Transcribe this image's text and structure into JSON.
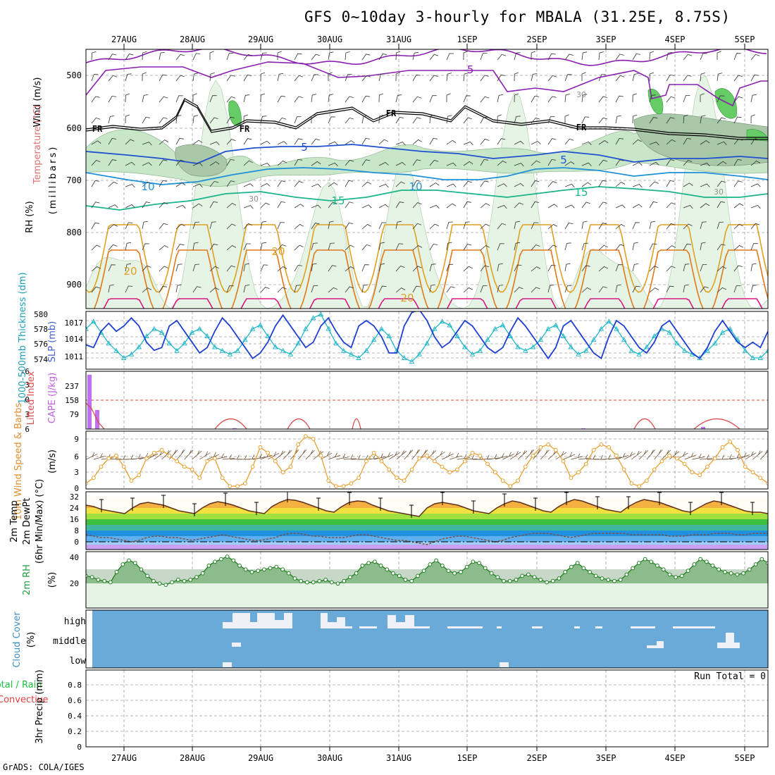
{
  "title": "GFS 0~10day 3-hourly for MBALA (31.25E, 8.75S)",
  "credit": "GrADS: COLA/IGES",
  "dates": [
    "27AUG",
    "28AUG",
    "29AUG",
    "30AUG",
    "31AUG",
    "1SEP",
    "2SEP",
    "3SEP",
    "4SEP",
    "5SEP"
  ],
  "colors": {
    "temp_lines": [
      "#8a1fb0",
      "#1f50d0",
      "#1e90d8",
      "#19b48a",
      "#e0a020",
      "#e07818",
      "#d81880"
    ],
    "rh_fill": [
      "#e6f4e6",
      "#c8e6c8",
      "#a8c8a8",
      "#66cc66"
    ],
    "slp": "#1f3fd0",
    "thickness": "#20b8c8",
    "wind": "#e8a030",
    "cloud_bg": "#6aaad8",
    "cloud_fill": "#f0f0f8"
  },
  "panel1": {
    "ylabel_wind": "Wind (m/s)",
    "ylabel_temp": "Temperature (°C)",
    "ylabel_rh": "RH (%)",
    "ylabel_mb": "(millibars)",
    "y_ticks": [
      "500",
      "600",
      "700",
      "800",
      "900"
    ],
    "contour_labels": [
      "-5",
      "5",
      "5",
      "10",
      "10",
      "15",
      "15",
      "20",
      "20",
      "20",
      "30",
      "30",
      "30"
    ],
    "freeze_labels": [
      "FR",
      "FR",
      "FR",
      "FR"
    ]
  },
  "panel2": {
    "ylabel_thick": "1000-500mb Thickness (dm)",
    "ylabel_slp": "SLP (mb)",
    "thick_ticks": [
      "580",
      "578",
      "576",
      "574"
    ],
    "slp_ticks": [
      "1017",
      "1014",
      "1011"
    ]
  },
  "panel3": {
    "ylabel_li": "Lifted Index",
    "ylabel_cape": "CAPE (J/kg)",
    "li_ticks": [
      "-6",
      "-3",
      "0",
      "3",
      "6"
    ],
    "cape_ticks": [
      "237",
      "158",
      "79"
    ]
  },
  "panel4": {
    "ylabel": "10m Wind Speed & Barbs",
    "unit": "(m/s)",
    "ticks": [
      "9",
      "6",
      "3",
      "0"
    ]
  },
  "panel5": {
    "ylabel_a": "2m Temp",
    "ylabel_b": "2m DewPt",
    "ylabel_c": "(6hr Min/Max) (°C)",
    "ticks": [
      "32",
      "24",
      "16",
      "8",
      "0"
    ]
  },
  "panel6": {
    "ylabel": "2m RH",
    "unit": "(%)",
    "ticks": [
      "40",
      "20"
    ]
  },
  "panel7": {
    "ylabel": "Cloud Cover",
    "unit": "(%)",
    "levels": [
      "high",
      "middle",
      "low"
    ]
  },
  "panel8": {
    "ylabel_a": "Total / Rain",
    "ylabel_b": "Convective",
    "ylabel_c": "3hr Precip (mm)",
    "ticks": [
      "0.8",
      "0.6",
      "0.4",
      "0.2",
      "0"
    ],
    "run_total": "Run Total = 0"
  },
  "chart_data": [
    {
      "type": "line",
      "title": "GFS 0~10day 3-hourly for MBALA (31.25E, 8.75S)",
      "ylabel": "1000-500mb Thickness (dm) / SLP (mb)",
      "series": [
        {
          "name": "SLP (mb)",
          "values": [
            1012.5,
            1012,
            1015,
            1016.5,
            1015,
            1016,
            1017.5,
            1016,
            1013,
            1011.5,
            1012,
            1016,
            1017,
            1015,
            1013,
            1011,
            1012,
            1015,
            1017.5,
            1016,
            1014,
            1012,
            1010,
            1011,
            1013,
            1016,
            1018,
            1016,
            1014,
            1012,
            1013,
            1016,
            1017.5,
            1015,
            1013,
            1012,
            1016,
            1017,
            1016,
            1014,
            1011,
            1011,
            1016,
            1018.5,
            1019,
            1017,
            1014,
            1012,
            1013,
            1015,
            1017,
            1016,
            1014,
            1012,
            1011,
            1012,
            1015,
            1017.5,
            1016,
            1014,
            1012,
            1010,
            1012,
            1016,
            1017,
            1015,
            1013,
            1011,
            1010,
            1014,
            1017,
            1016,
            1014,
            1012,
            1011,
            1013,
            1016,
            1017,
            1015,
            1013,
            1011,
            1010,
            1012,
            1015,
            1017,
            1015,
            1013,
            1012,
            1013,
            1012,
            1015
          ]
        },
        {
          "name": "1000-500mb Thickness (dm)",
          "values": [
            578,
            579,
            577.5,
            576,
            575,
            574,
            574.5,
            575.5,
            577,
            578,
            577.5,
            576,
            575,
            576,
            577.5,
            578,
            577,
            575.5,
            575,
            574.5,
            575,
            576.5,
            578,
            578.5,
            577,
            575.5,
            575,
            574.5,
            576,
            578,
            579.5,
            580,
            578,
            576,
            575,
            574.5,
            574,
            575,
            576.5,
            578,
            577,
            575,
            574,
            573.5,
            574.5,
            576,
            578,
            579,
            578.5,
            577,
            575.5,
            574.5,
            575,
            576.5,
            578,
            578.5,
            577,
            575.5,
            575,
            575.5,
            576.5,
            578,
            578.5,
            577,
            575.5,
            574.5,
            575,
            576.5,
            578,
            579,
            578,
            576.5,
            575,
            574.5,
            575.5,
            577,
            578,
            577.5,
            576,
            575,
            574.5,
            574,
            575,
            576,
            577.5,
            578,
            576.5,
            575,
            574,
            574,
            575
          ]
        }
      ]
    },
    {
      "type": "bar",
      "title": "CAPE (J/kg)",
      "ylabel": "CAPE (J/kg)",
      "categories": [
        "27AUG 00",
        "27AUG 03",
        "28AUG 12",
        "4SEP 12"
      ],
      "values": [
        300,
        105,
        4,
        12
      ]
    },
    {
      "type": "line",
      "title": "10m Wind Speed",
      "ylabel": "(m/s)",
      "ylim": [
        0,
        10
      ],
      "values": [
        1,
        2,
        4,
        5.5,
        6,
        4,
        1.5,
        2.5,
        5.5,
        6.5,
        7,
        6,
        5,
        4,
        3.5,
        2,
        5,
        5.5,
        2,
        0.5,
        0.5,
        1,
        4,
        7.5,
        6.5,
        5,
        3,
        4,
        8,
        9.5,
        9,
        6,
        1.5,
        0.5,
        0.5,
        1,
        2,
        5,
        6.5,
        5,
        3.5,
        2,
        1.5,
        3.5,
        5.5,
        6,
        5,
        4,
        3,
        3.5,
        5,
        6.5,
        6,
        4.5,
        3,
        1.5,
        0.5,
        1.5,
        4,
        6,
        7.5,
        8,
        7,
        5,
        2,
        3,
        4.5,
        7,
        8,
        7.5,
        6,
        3.5,
        1,
        0.5,
        1.5,
        3.5,
        5,
        6,
        5.5,
        4.5,
        3,
        2.5,
        4,
        5.5,
        7.5,
        8.5,
        7,
        4,
        3,
        2,
        1
      ]
    },
    {
      "type": "line",
      "title": "2m Temp / 2m DewPt",
      "ylabel": "(°C)",
      "ylim": [
        -5,
        33
      ],
      "series": [
        {
          "name": "2m Temp",
          "values": [
            26,
            25,
            23,
            22,
            21,
            20,
            24,
            27,
            28,
            27,
            26,
            24,
            22,
            21,
            20,
            24,
            27,
            28.5,
            27.5,
            26,
            24,
            22,
            21,
            20,
            25,
            28,
            30,
            29.5,
            28,
            26,
            24,
            22,
            21,
            25,
            28,
            29,
            28.5,
            26,
            24,
            22,
            21,
            20,
            19,
            18,
            24,
            27,
            28,
            27,
            26,
            24,
            22,
            21,
            20,
            24,
            27,
            29,
            28,
            26,
            24,
            22,
            21,
            25,
            28,
            30,
            29,
            27,
            25,
            23,
            22,
            21,
            25,
            28,
            30,
            29,
            28,
            26,
            24,
            22,
            21,
            24,
            27,
            29,
            28,
            26,
            24,
            22,
            21,
            21,
            20
          ]
        },
        {
          "name": "2m DewPt",
          "values": [
            5,
            4,
            3,
            3,
            2,
            1,
            0,
            1,
            3,
            4,
            4,
            3,
            3,
            2,
            1,
            2,
            3,
            4,
            5,
            4,
            3,
            2,
            1,
            1,
            2,
            3,
            5,
            6,
            6,
            5,
            4,
            4,
            3,
            3,
            3,
            4,
            5,
            5,
            4,
            3,
            2,
            1,
            1,
            0,
            -1,
            -2,
            0,
            2,
            3,
            4,
            4,
            3,
            2,
            1,
            0,
            1,
            3,
            4,
            5,
            6,
            6,
            6,
            5,
            4,
            3,
            4,
            5,
            6,
            6,
            6,
            6,
            6,
            5,
            5,
            5,
            5,
            5,
            4,
            4,
            4,
            5,
            5,
            5,
            6,
            6,
            6,
            5,
            5,
            6,
            6,
            6
          ]
        }
      ]
    },
    {
      "type": "area",
      "title": "2m RH",
      "ylabel": "(%)",
      "ylim": [
        0,
        45
      ],
      "values": [
        25,
        24,
        22,
        21,
        20,
        28,
        34,
        37,
        35,
        30,
        25,
        21,
        19,
        18,
        20,
        22,
        21,
        22,
        24,
        27,
        33,
        36,
        38,
        40,
        37,
        33,
        30,
        28,
        29,
        30,
        31,
        32,
        30,
        27,
        23,
        21,
        20,
        20,
        21,
        22,
        20,
        19,
        21,
        24,
        27,
        33,
        35,
        36,
        33,
        30,
        27,
        25,
        22,
        21,
        25,
        29,
        34,
        37,
        33,
        29,
        27,
        28,
        32,
        36,
        35,
        31,
        27,
        24,
        21,
        21,
        22,
        25,
        26,
        24,
        22,
        20,
        21,
        23,
        28,
        32,
        35,
        31,
        28,
        25,
        23,
        22,
        21,
        22,
        26,
        31,
        35,
        38,
        36,
        33,
        30,
        26,
        24,
        25,
        29,
        34,
        38,
        36,
        33,
        30,
        28,
        27,
        26,
        27,
        30,
        34,
        38,
        35
      ]
    }
  ]
}
